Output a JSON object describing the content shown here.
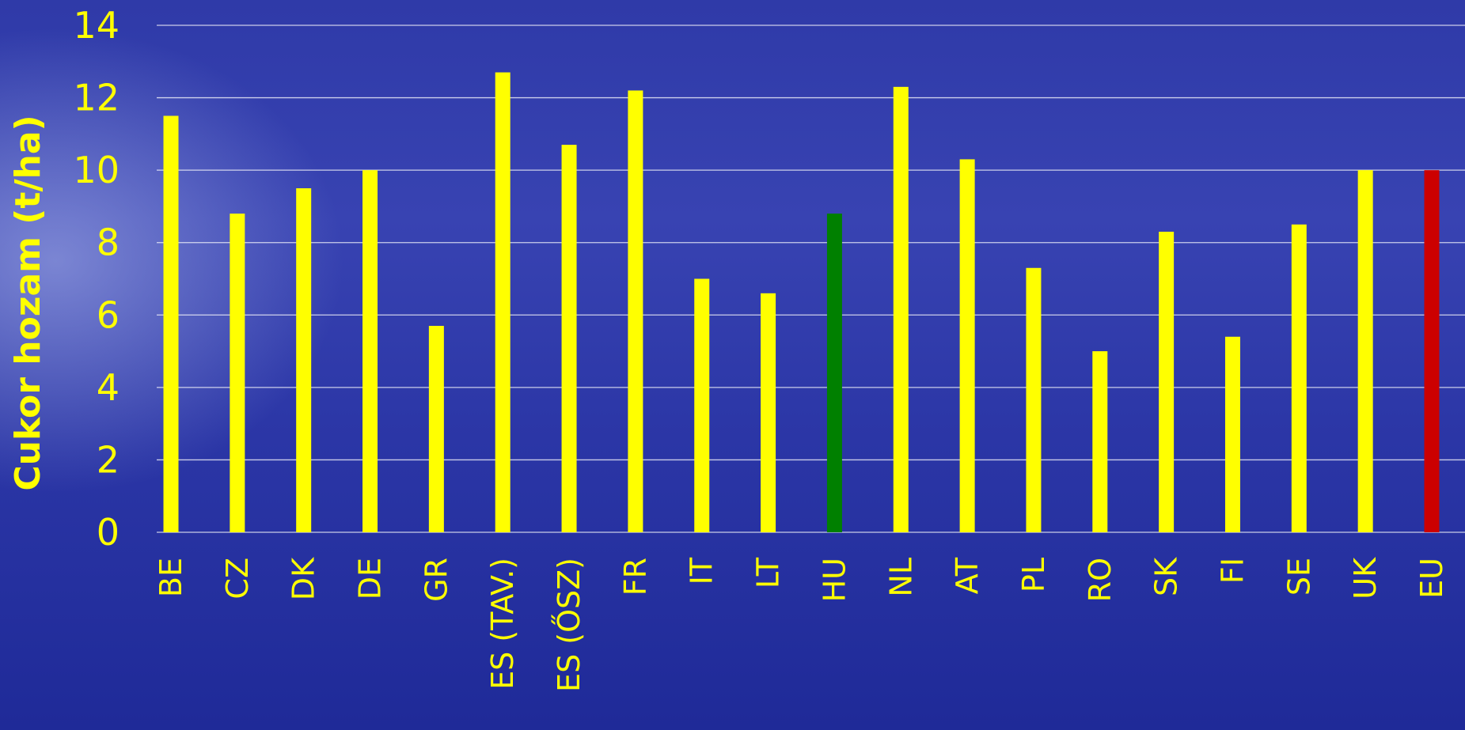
{
  "chart_data": {
    "type": "bar",
    "ylabel": "Cukor hozam (t/ha)",
    "ylim": [
      0,
      14
    ],
    "yticks": [
      "0",
      "2",
      "4",
      "6",
      "8",
      "10",
      "12",
      "14"
    ],
    "grid": true,
    "categories": [
      "BE",
      "CZ",
      "DK",
      "DE",
      "GR",
      "ES (TAV.)",
      "ES (ŐSZ)",
      "FR",
      "IT",
      "LT",
      "HU",
      "NL",
      "AT",
      "PL",
      "RO",
      "SK",
      "FI",
      "SE",
      "UK",
      "EU"
    ],
    "values": [
      11.5,
      8.8,
      9.5,
      10.0,
      5.7,
      12.7,
      10.7,
      12.2,
      7.0,
      6.6,
      8.8,
      12.3,
      10.3,
      7.3,
      5.0,
      8.3,
      5.4,
      8.5,
      10.0,
      10.0
    ],
    "colors": {
      "default": "#ffff00",
      "HU": "#008000",
      "EU": "#cc0000"
    }
  }
}
